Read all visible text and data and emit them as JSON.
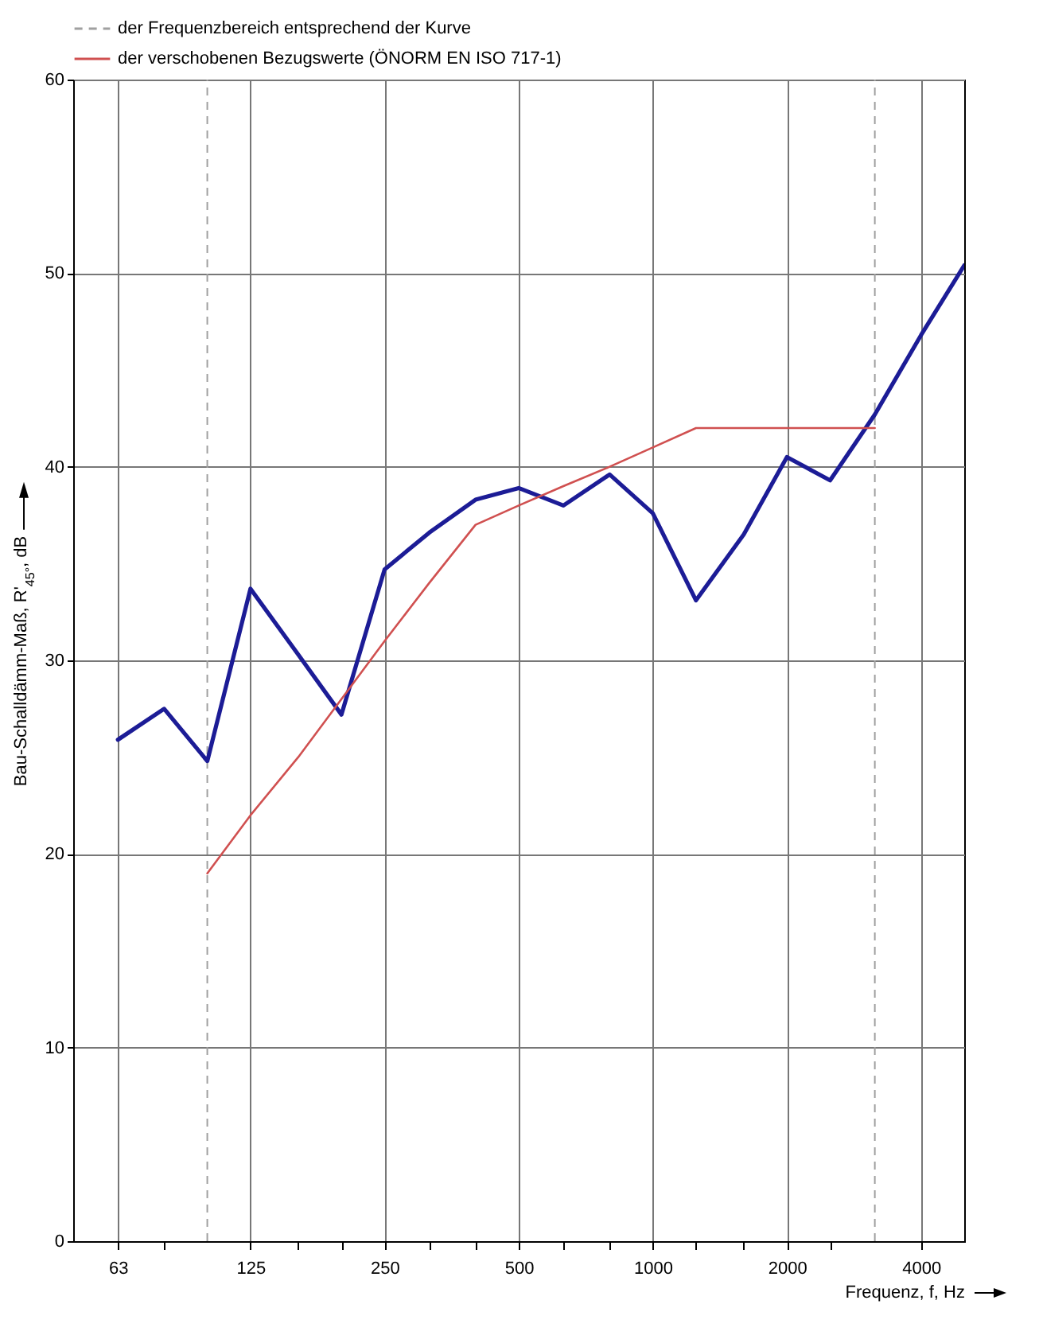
{
  "chart_data": {
    "type": "line",
    "xlabel": "Frequenz, f, Hz",
    "ylabel": "Bau-Schalldämm-Maß, R'$_{45°}$, dB",
    "log": "x",
    "xlim": [
      50,
      5000
    ],
    "ylim": [
      0,
      60
    ],
    "xticks": [
      63,
      {
        "value": 80,
        "label": null
      },
      125,
      {
        "value": 160,
        "label": null
      },
      {
        "value": 200,
        "label": null
      },
      250,
      {
        "value": 315,
        "label": null
      },
      {
        "value": 400,
        "label": null
      },
      500,
      {
        "value": 630,
        "label": null
      },
      {
        "value": 800,
        "label": null
      },
      1000,
      {
        "value": 1250,
        "label": null
      },
      {
        "value": 1600,
        "label": null
      },
      2000,
      {
        "value": 2500,
        "label": null
      },
      4000
    ],
    "yticks": [
      0,
      10,
      20,
      30,
      40,
      50,
      60
    ],
    "grid": true,
    "legend": "top left",
    "series": [
      {
        "color": "#1c1c96",
        "x": [
          63,
          80,
          100,
          125,
          160,
          200,
          250,
          315,
          400,
          500,
          630,
          800,
          1000,
          1250,
          1600,
          2000,
          2500,
          3150,
          4000,
          5000
        ],
        "values": [
          25.9,
          27.5,
          24.8,
          33.7,
          30.3,
          27.2,
          34.7,
          36.6,
          38.3,
          38.9,
          38.0,
          39.6,
          37.6,
          33.1,
          36.5,
          40.5,
          39.3,
          42.7,
          46.8,
          50.4
        ]
      },
      {
        "name": "der verschobenen Bezugswerte (ÖNORM EN ISO 717-1)",
        "color": "#d05050",
        "x": [
          100,
          125,
          160,
          200,
          250,
          315,
          400,
          500,
          630,
          800,
          1000,
          1250,
          1600,
          2000,
          2500,
          3150
        ],
        "values": [
          19,
          22,
          25,
          28,
          31,
          34,
          37,
          38,
          39,
          40,
          41,
          42,
          42,
          42,
          42,
          42
        ]
      }
    ],
    "ref_lines": [
      {
        "axis": "x",
        "value": 100,
        "label": "der Frequenzbereich entsprechend der Kurve",
        "color": "#a0a0a0",
        "line_style": "dashed"
      },
      {
        "axis": "x",
        "value": 3150,
        "label": null,
        "color": "#a0a0a0",
        "line_style": "dashed"
      }
    ]
  }
}
